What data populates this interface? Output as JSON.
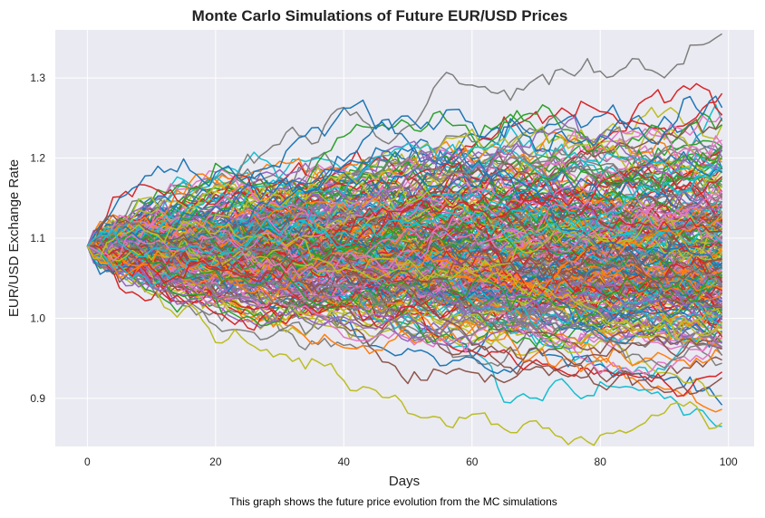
{
  "chart_data": {
    "type": "line",
    "title": "Monte Carlo Simulations of Future EUR/USD Prices",
    "xlabel": "Days",
    "ylabel": "EUR/USD Exchange Rate",
    "caption": "This graph shows the future price evolution from the MC simulations",
    "xlim": [
      -5,
      104
    ],
    "ylim": [
      0.84,
      1.36
    ],
    "xticks": [
      0,
      20,
      40,
      60,
      80,
      100
    ],
    "xtick_labels": [
      "0",
      "20",
      "40",
      "60",
      "80",
      "100"
    ],
    "yticks": [
      0.9,
      1.0,
      1.1,
      1.2,
      1.3
    ],
    "ytick_labels": [
      "0.9",
      "1.0",
      "1.1",
      "1.2",
      "1.3"
    ],
    "grid": true,
    "background": "#eaeaf2",
    "grid_color": "#ffffff",
    "palette": [
      "#1f77b4",
      "#ff7f0e",
      "#2ca02c",
      "#d62728",
      "#9467bd",
      "#8c564b",
      "#e377c2",
      "#7f7f7f",
      "#bcbd22",
      "#17becf"
    ],
    "simulation": {
      "start_value": 1.09,
      "days": 100,
      "n_paths": 300,
      "final_range": [
        0.865,
        1.355
      ]
    }
  }
}
